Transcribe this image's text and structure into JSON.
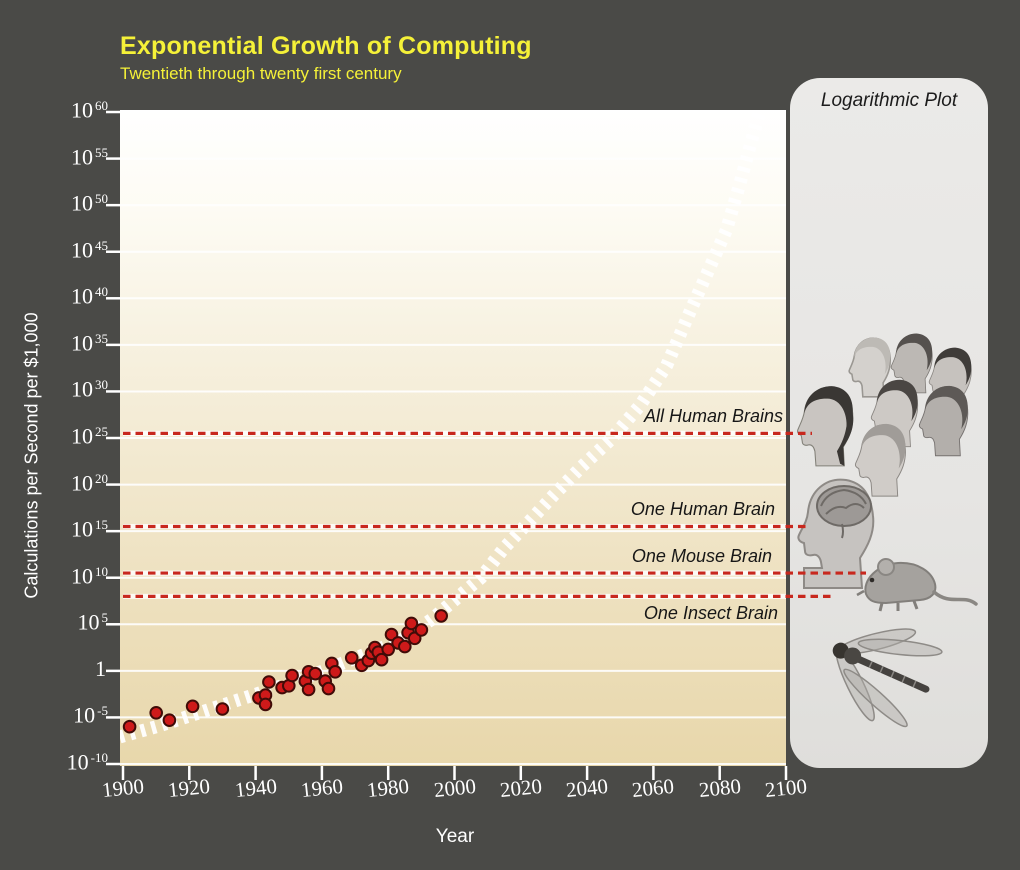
{
  "title": "Exponential Growth of Computing",
  "subtitle": "Twentieth through twenty first century",
  "panel": {
    "title": "Logarithmic Plot",
    "illustrations": [
      "group-of-human-faces",
      "human-head-with-brain",
      "mouse",
      "dragonfly"
    ]
  },
  "chart_data": {
    "type": "scatter",
    "title": "Exponential Growth of Computing",
    "subtitle": "Twentieth through twenty first century",
    "xlabel": "Year",
    "ylabel": "Calculations per Second per $1,000",
    "x_ticks": [
      1900,
      1920,
      1940,
      1960,
      1980,
      2000,
      2020,
      2040,
      2060,
      2080,
      2100
    ],
    "y_tick_exponents": [
      60,
      55,
      50,
      45,
      40,
      35,
      30,
      25,
      20,
      15,
      10,
      5,
      0,
      -5,
      -10
    ],
    "xlim": [
      1900,
      2100
    ],
    "ylim_log10": [
      -10,
      60
    ],
    "grid": true,
    "y_scale": "log",
    "points": [
      {
        "year": 1902,
        "log10": -6.0
      },
      {
        "year": 1910,
        "log10": -4.5
      },
      {
        "year": 1914,
        "log10": -5.3
      },
      {
        "year": 1921,
        "log10": -3.8
      },
      {
        "year": 1930,
        "log10": -4.1
      },
      {
        "year": 1941,
        "log10": -2.9
      },
      {
        "year": 1943,
        "log10": -2.6
      },
      {
        "year": 1943,
        "log10": -3.6
      },
      {
        "year": 1944,
        "log10": -1.2
      },
      {
        "year": 1948,
        "log10": -1.8
      },
      {
        "year": 1950,
        "log10": -1.6
      },
      {
        "year": 1951,
        "log10": -0.5
      },
      {
        "year": 1955,
        "log10": -1.1
      },
      {
        "year": 1956,
        "log10": -0.1
      },
      {
        "year": 1956,
        "log10": -2.0
      },
      {
        "year": 1958,
        "log10": -0.3
      },
      {
        "year": 1961,
        "log10": -1.1
      },
      {
        "year": 1962,
        "log10": -1.9
      },
      {
        "year": 1963,
        "log10": 0.8
      },
      {
        "year": 1964,
        "log10": -0.1
      },
      {
        "year": 1969,
        "log10": 1.4
      },
      {
        "year": 1972,
        "log10": 0.6
      },
      {
        "year": 1974,
        "log10": 1.1
      },
      {
        "year": 1975,
        "log10": 1.9
      },
      {
        "year": 1976,
        "log10": 2.5
      },
      {
        "year": 1977,
        "log10": 2.0
      },
      {
        "year": 1978,
        "log10": 1.2
      },
      {
        "year": 1980,
        "log10": 2.3
      },
      {
        "year": 1981,
        "log10": 3.9
      },
      {
        "year": 1983,
        "log10": 3.0
      },
      {
        "year": 1985,
        "log10": 2.6
      },
      {
        "year": 1986,
        "log10": 4.1
      },
      {
        "year": 1987,
        "log10": 5.1
      },
      {
        "year": 1988,
        "log10": 3.5
      },
      {
        "year": 1990,
        "log10": 4.4
      },
      {
        "year": 1996,
        "log10": 5.9
      }
    ],
    "trend": {
      "style": "white-dashed-ties",
      "points": [
        {
          "year": 1899,
          "log10": -7.1
        },
        {
          "year": 1911,
          "log10": -5.9
        },
        {
          "year": 1923,
          "log10": -4.5
        },
        {
          "year": 1935,
          "log10": -3.1
        },
        {
          "year": 1947,
          "log10": -1.7
        },
        {
          "year": 1959,
          "log10": -0.2
        },
        {
          "year": 1971,
          "log10": 1.5
        },
        {
          "year": 1984,
          "log10": 3.3
        },
        {
          "year": 1993,
          "log10": 5.5
        },
        {
          "year": 2000,
          "log10": 7.6
        },
        {
          "year": 2008,
          "log10": 10.0
        },
        {
          "year": 2015,
          "log10": 13.2
        },
        {
          "year": 2023,
          "log10": 16.2
        },
        {
          "year": 2030,
          "log10": 18.9
        },
        {
          "year": 2038,
          "log10": 21.8
        },
        {
          "year": 2047,
          "log10": 24.8
        },
        {
          "year": 2056,
          "log10": 28.5
        },
        {
          "year": 2064,
          "log10": 32.8
        },
        {
          "year": 2070,
          "log10": 37.7
        },
        {
          "year": 2076,
          "log10": 42.5
        },
        {
          "year": 2082,
          "log10": 47.3
        },
        {
          "year": 2086,
          "log10": 52.2
        },
        {
          "year": 2089,
          "log10": 56.1
        },
        {
          "year": 2092,
          "log10": 60.0
        }
      ]
    },
    "reference_lines": [
      {
        "label": "All Human Brains",
        "log10": 25.5,
        "label_side": "above"
      },
      {
        "label": "One Human Brain",
        "log10": 15.5,
        "label_side": "above"
      },
      {
        "label": "One Mouse Brain",
        "log10": 10.5,
        "label_side": "above"
      },
      {
        "label": "One Insect Brain",
        "log10": 8.0,
        "label_side": "below"
      }
    ]
  },
  "colors": {
    "background": "#4a4a47",
    "title_text": "#f5f138",
    "axis_text": "#ffffff",
    "plot_top": "#ffffff",
    "plot_bottom": "#e8d7ab",
    "gridline": "#ffffff",
    "point_fill": "#ce1a1a",
    "point_stroke": "#400c08",
    "trend_line": "#ffffff",
    "reference_line": "#c8281e",
    "panel_background": "#e7e6e4",
    "annotation_text": "#171717"
  }
}
